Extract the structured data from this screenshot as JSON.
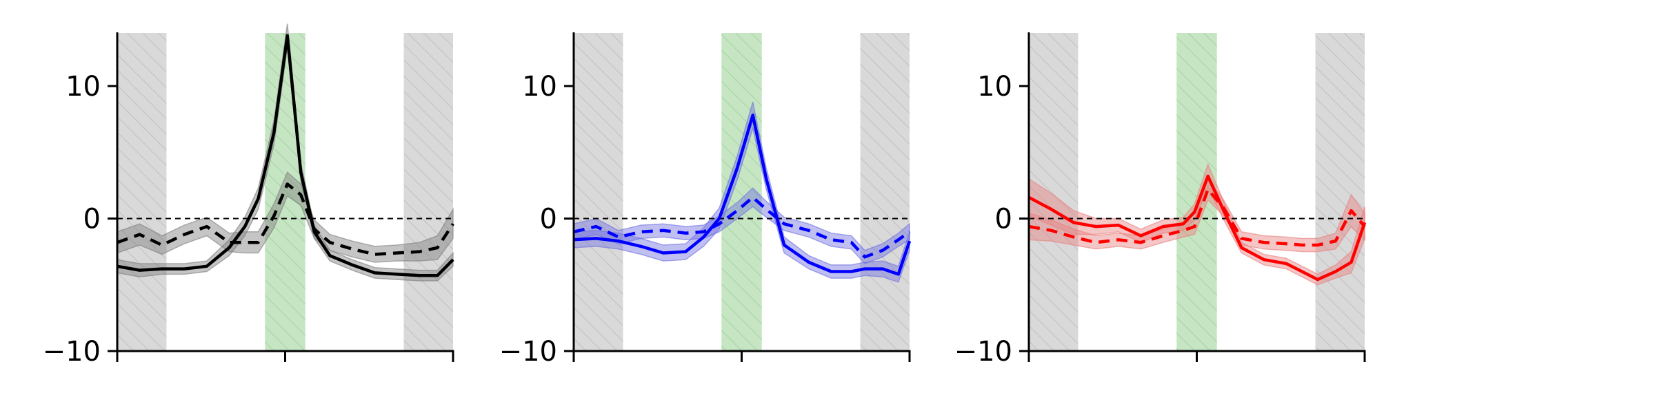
{
  "chart_data": [
    {
      "type": "line",
      "title": "",
      "xlabel": "",
      "ylabel": "",
      "ylim": [
        -10,
        14
      ],
      "xlim": [
        0,
        15
      ],
      "grid": false,
      "yticks": [
        {
          "value": -10,
          "label": "−10"
        },
        {
          "value": 0,
          "label": "0"
        },
        {
          "value": 10,
          "label": "10"
        }
      ],
      "xticks": [
        0,
        7.5,
        15
      ],
      "reference_line": {
        "y": 0,
        "style": "dashed",
        "color": "#000000"
      },
      "shaded_regions": [
        {
          "x0": 0,
          "x1": 2.2,
          "color": "#d9d9d9",
          "hatch": true
        },
        {
          "x0": 6.6,
          "x1": 8.4,
          "color": "#c6e6c3",
          "hatch": true
        },
        {
          "x0": 12.8,
          "x1": 15,
          "color": "#d9d9d9",
          "hatch": true
        }
      ],
      "series": [
        {
          "style": "solid",
          "color": "#000000",
          "band_color": "#7f7f7f",
          "x": [
            0,
            1,
            2,
            3,
            4,
            5,
            5.7,
            6.3,
            7.0,
            7.6,
            8.2,
            8.8,
            9.5,
            10.5,
            11.5,
            12.5,
            13.5,
            14.3,
            15
          ],
          "y": [
            -3.6,
            -3.9,
            -3.8,
            -3.8,
            -3.6,
            -2.2,
            -0.6,
            1.5,
            6.5,
            13.8,
            3.5,
            -1.0,
            -2.8,
            -3.5,
            -4.1,
            -4.2,
            -4.3,
            -4.3,
            -3.1
          ],
          "err": [
            0.5,
            0.5,
            0.4,
            0.4,
            0.4,
            0.6,
            0.7,
            0.8,
            0.9,
            0.9,
            0.7,
            0.5,
            0.4,
            0.4,
            0.4,
            0.4,
            0.4,
            0.4,
            0.5
          ]
        },
        {
          "style": "dashed",
          "color": "#000000",
          "band_color": "#7f7f7f",
          "x": [
            0,
            1,
            2,
            3,
            4,
            5,
            5.7,
            6.3,
            7.0,
            7.6,
            8.2,
            8.8,
            9.5,
            10.5,
            11.5,
            12.5,
            13.5,
            14.3,
            15
          ],
          "y": [
            -1.8,
            -1.2,
            -2.0,
            -1.2,
            -0.6,
            -1.8,
            -1.8,
            -1.8,
            0.2,
            2.6,
            1.8,
            -0.8,
            -1.8,
            -2.3,
            -2.7,
            -2.6,
            -2.5,
            -2.2,
            -0.4
          ],
          "err": [
            0.8,
            0.8,
            0.7,
            0.7,
            0.7,
            0.7,
            0.8,
            0.8,
            0.9,
            0.9,
            0.8,
            0.7,
            0.6,
            0.6,
            0.6,
            0.6,
            0.7,
            0.9,
            1.1
          ]
        }
      ]
    },
    {
      "type": "line",
      "title": "",
      "xlabel": "",
      "ylabel": "",
      "ylim": [
        -10,
        14
      ],
      "xlim": [
        0,
        15
      ],
      "grid": false,
      "yticks": [
        {
          "value": -10,
          "label": "−10"
        },
        {
          "value": 0,
          "label": "0"
        },
        {
          "value": 10,
          "label": "10"
        }
      ],
      "xticks": [
        0,
        7.5,
        15
      ],
      "reference_line": {
        "y": 0,
        "style": "dashed",
        "color": "#000000"
      },
      "shaded_regions": [
        {
          "x0": 0,
          "x1": 2.2,
          "color": "#d9d9d9",
          "hatch": true
        },
        {
          "x0": 6.6,
          "x1": 8.4,
          "color": "#c6e6c3",
          "hatch": true
        },
        {
          "x0": 12.8,
          "x1": 15,
          "color": "#d9d9d9",
          "hatch": true
        }
      ],
      "series": [
        {
          "style": "solid",
          "color": "#0000ff",
          "band_color": "#7070e0",
          "x": [
            0,
            1,
            2,
            3,
            4,
            5,
            5.8,
            6.5,
            7.3,
            8.0,
            8.6,
            9.4,
            10.5,
            11.5,
            12.4,
            13.0,
            13.8,
            14.5,
            15
          ],
          "y": [
            -1.6,
            -1.5,
            -1.7,
            -2.1,
            -2.6,
            -2.5,
            -1.4,
            0.0,
            3.8,
            7.8,
            3.0,
            -2.0,
            -3.3,
            -4.0,
            -4.0,
            -3.8,
            -3.8,
            -4.2,
            -1.7
          ],
          "err": [
            0.6,
            0.6,
            0.6,
            0.6,
            0.6,
            0.6,
            0.7,
            0.8,
            0.9,
            1.0,
            0.8,
            0.6,
            0.5,
            0.5,
            0.5,
            0.5,
            0.6,
            0.6,
            0.7
          ]
        },
        {
          "style": "dashed",
          "color": "#0000ff",
          "band_color": "#7070e0",
          "x": [
            0,
            1,
            2,
            3,
            4,
            5,
            5.8,
            6.5,
            7.3,
            8.0,
            8.6,
            9.4,
            10.5,
            11.5,
            12.4,
            13.0,
            13.8,
            14.5,
            15
          ],
          "y": [
            -1.0,
            -0.6,
            -1.4,
            -1.0,
            -0.9,
            -1.1,
            -1.0,
            -0.4,
            0.6,
            1.6,
            0.7,
            -0.4,
            -0.9,
            -1.6,
            -1.8,
            -2.9,
            -2.4,
            -1.6,
            -1.0
          ],
          "err": [
            0.6,
            0.6,
            0.5,
            0.5,
            0.5,
            0.5,
            0.5,
            0.6,
            0.6,
            0.7,
            0.6,
            0.5,
            0.5,
            0.5,
            0.5,
            0.5,
            0.5,
            0.5,
            0.6
          ]
        }
      ]
    },
    {
      "type": "line",
      "title": "",
      "xlabel": "",
      "ylabel": "",
      "ylim": [
        -10,
        14
      ],
      "xlim": [
        0,
        15
      ],
      "grid": false,
      "yticks": [
        {
          "value": -10,
          "label": "−10"
        },
        {
          "value": 0,
          "label": "0"
        },
        {
          "value": 10,
          "label": "10"
        }
      ],
      "xticks": [
        0,
        7.5,
        15
      ],
      "reference_line": {
        "y": 0,
        "style": "dashed",
        "color": "#000000"
      },
      "shaded_regions": [
        {
          "x0": 0,
          "x1": 2.2,
          "color": "#d9d9d9",
          "hatch": true
        },
        {
          "x0": 6.6,
          "x1": 8.4,
          "color": "#c6e6c3",
          "hatch": true
        },
        {
          "x0": 12.8,
          "x1": 15,
          "color": "#d9d9d9",
          "hatch": true
        }
      ],
      "series": [
        {
          "style": "solid",
          "color": "#ff0000",
          "band_color": "#e88080",
          "x": [
            0,
            1,
            2,
            3,
            4,
            5,
            6.0,
            6.9,
            7.4,
            8.0,
            8.7,
            9.5,
            10.5,
            11.5,
            12.2,
            12.9,
            13.7,
            14.4,
            15
          ],
          "y": [
            1.6,
            0.7,
            -0.3,
            -0.6,
            -0.5,
            -1.3,
            -0.6,
            -0.4,
            0.5,
            3.2,
            0.6,
            -2.2,
            -3.1,
            -3.4,
            -4.0,
            -4.6,
            -4.0,
            -3.3,
            -0.3
          ],
          "err": [
            1.4,
            1.2,
            0.9,
            0.6,
            0.5,
            0.5,
            0.5,
            0.5,
            0.6,
            0.9,
            0.7,
            0.4,
            0.4,
            0.4,
            0.4,
            0.4,
            0.5,
            0.8,
            1.2
          ]
        },
        {
          "style": "dashed",
          "color": "#ff0000",
          "band_color": "#e88080",
          "x": [
            0,
            1,
            2,
            3,
            4,
            5,
            6.0,
            6.9,
            7.4,
            8.0,
            8.7,
            9.5,
            10.5,
            11.5,
            12.2,
            12.9,
            13.7,
            14.4,
            15
          ],
          "y": [
            -0.6,
            -0.9,
            -1.4,
            -1.8,
            -1.6,
            -1.8,
            -1.3,
            -0.9,
            -0.6,
            2.2,
            0.8,
            -1.5,
            -1.8,
            -1.9,
            -2.0,
            -2.0,
            -1.7,
            0.6,
            -0.6
          ],
          "err": [
            1.0,
            0.8,
            0.6,
            0.5,
            0.5,
            0.5,
            0.5,
            0.5,
            0.6,
            0.8,
            0.6,
            0.5,
            0.5,
            0.5,
            0.5,
            0.5,
            0.6,
            1.2,
            1.0
          ]
        }
      ]
    }
  ]
}
